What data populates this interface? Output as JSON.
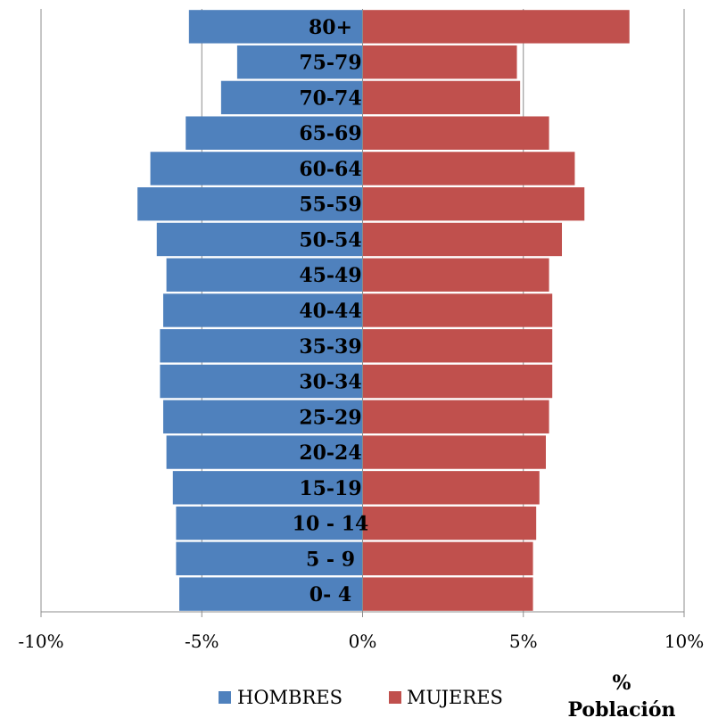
{
  "chart_data": {
    "type": "bar",
    "orientation": "horizontal",
    "categories": [
      "0- 4",
      "5 - 9",
      "10 - 14",
      "15-19",
      "20-24",
      "25-29",
      "30-34",
      "35-39",
      "40-44",
      "45-49",
      "50-54",
      "55-59",
      "60-64",
      "65-69",
      "70-74",
      "75-79",
      "80+"
    ],
    "series": [
      {
        "name": "HOMBRES",
        "color": "#4F81BD",
        "values": [
          -5.7,
          -5.8,
          -5.8,
          -5.9,
          -6.1,
          -6.2,
          -6.3,
          -6.3,
          -6.2,
          -6.1,
          -6.4,
          -7.0,
          -6.6,
          -5.5,
          -4.4,
          -3.9,
          -5.4
        ]
      },
      {
        "name": "MUJERES",
        "color": "#C0504D",
        "values": [
          5.3,
          5.3,
          5.4,
          5.5,
          5.7,
          5.8,
          5.9,
          5.9,
          5.9,
          5.8,
          6.2,
          6.9,
          6.6,
          5.8,
          4.9,
          4.8,
          8.3
        ]
      }
    ],
    "xlim": [
      -10,
      10
    ],
    "xticks": [
      -10,
      -5,
      0,
      5,
      10
    ],
    "xtick_labels": [
      "-10%",
      "-5%",
      "0%",
      "5%",
      "10%"
    ],
    "unit_label": [
      "%",
      "Población"
    ],
    "grid": true,
    "legend_position": "bottom"
  }
}
